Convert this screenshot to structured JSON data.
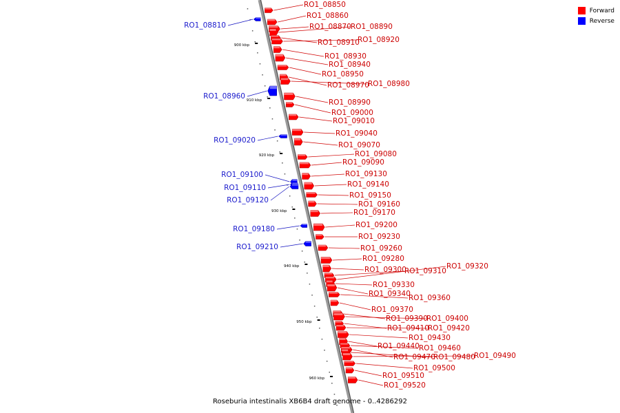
{
  "legend": {
    "forward_label": "Forward",
    "forward_color": "#ff0000",
    "reverse_label": "Reverse",
    "reverse_color": "#0000ff"
  },
  "caption": "Roseburia intestinalis XB6B4 draft genome - 0..4286292",
  "ticks": [
    "900 kbp",
    "910 kbp",
    "920 kbp",
    "930 kbp",
    "940 kbp",
    "950 kbp",
    "960 kbp"
  ],
  "forward_genes": [
    "RO1_08850",
    "RO1_08860",
    "RO1_08870",
    "RO1_08890",
    "RO1_08910",
    "RO1_08920",
    "RO1_08930",
    "RO1_08940",
    "RO1_08950",
    "RO1_08970",
    "RO1_08980",
    "RO1_08990",
    "RO1_09000",
    "RO1_09010",
    "RO1_09040",
    "RO1_09070",
    "RO1_09080",
    "RO1_09090",
    "RO1_09130",
    "RO1_09140",
    "RO1_09150",
    "RO1_09160",
    "RO1_09170",
    "RO1_09200",
    "RO1_09230",
    "RO1_09260",
    "RO1_09280",
    "RO1_09300",
    "RO1_09310",
    "RO1_09320",
    "RO1_09330",
    "RO1_09340",
    "RO1_09360",
    "RO1_09370",
    "RO1_09390",
    "RO1_09400",
    "RO1_09410",
    "RO1_09420",
    "RO1_09430",
    "RO1_09440",
    "RO1_09460",
    "RO1_09470",
    "RO1_09480",
    "RO1_09490",
    "RO1_09500",
    "RO1_09510",
    "RO1_09520"
  ],
  "reverse_genes": [
    "RO1_08810",
    "RO1_08960",
    "RO1_09020",
    "RO1_09100",
    "RO1_09110",
    "RO1_09120",
    "RO1_09180",
    "RO1_09210"
  ]
}
